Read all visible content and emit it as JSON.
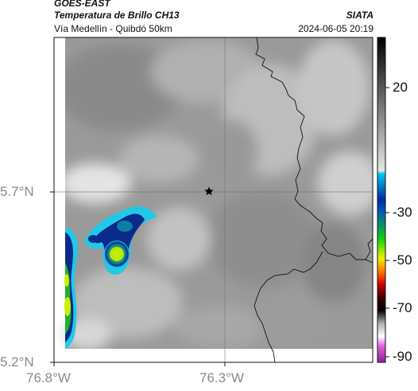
{
  "header": {
    "satellite": "GOES-EAST",
    "product": "Temperatura de Brillo CH13",
    "source": "SIATA",
    "route": "Vía Medellín - Quibdó 50km",
    "datetime": "2024-06-05 20:19"
  },
  "map": {
    "lat_ticks": [
      "5.7°N",
      "5.2°N"
    ],
    "lon_ticks": [
      "76.8°W",
      "76.3°W"
    ],
    "marker_icon": "star-icon"
  },
  "colorbar": {
    "ticks": [
      "20",
      "-30",
      "-50",
      "-70",
      "-90"
    ]
  },
  "colors": {
    "cloud_cold": "#1fb02b",
    "cloud_core": "#c8f000",
    "cloud_edge": "#0a2a8c",
    "cloud_cyan": "#22c8e8"
  }
}
